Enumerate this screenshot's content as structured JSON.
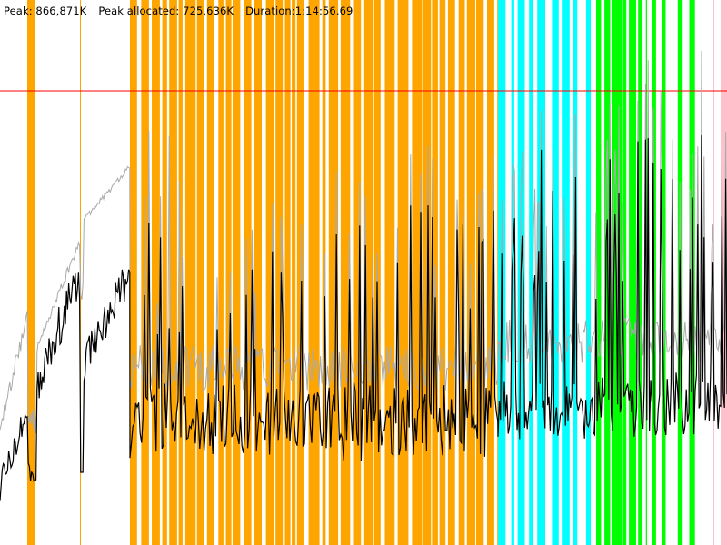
{
  "stats": {
    "peak": "Peak: 866,871K",
    "peak_allocated": "Peak allocated: 725,636K",
    "duration": "Duration:1:14:56.69"
  },
  "colors": {
    "background": "#ffffff",
    "phase_orange": "#ffa500",
    "phase_cyan": "#00ffff",
    "phase_green": "#00ff00",
    "phase_pink": "#ffc0cb",
    "peak_line": "#ff0000",
    "total_memory_line": "#aaaaaa",
    "allocated_memory_line": "#000000"
  },
  "graph": {
    "peak_line_level": 0.95,
    "phases": [
      {
        "color": "orange",
        "ranges": [
          [
            0.035,
            0.049
          ],
          [
            0.11,
            0.113
          ]
        ]
      },
      {
        "color": "orange",
        "ranges": [
          [
            0.18,
            0.69
          ]
        ]
      },
      {
        "color": "cyan",
        "ranges": [
          [
            0.69,
            0.81
          ]
        ]
      },
      {
        "color": "green",
        "ranges": [
          [
            0.815,
            0.97
          ]
        ]
      },
      {
        "color": "pink",
        "ranges": [
          [
            0.985,
            1.0
          ]
        ]
      }
    ]
  }
}
